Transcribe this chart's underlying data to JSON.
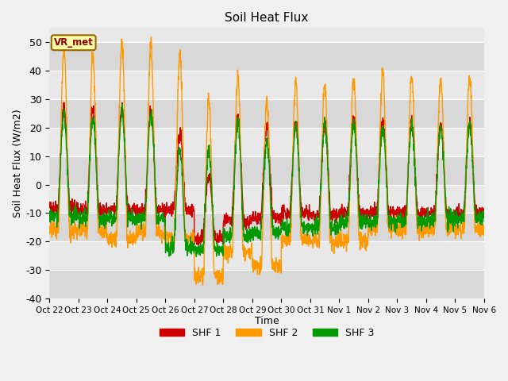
{
  "title": "Soil Heat Flux",
  "ylabel": "Soil Heat Flux (W/m2)",
  "xlabel": "Time",
  "annotation": "VR_met",
  "ylim": [
    -40,
    55
  ],
  "yticks": [
    -40,
    -30,
    -20,
    -10,
    0,
    10,
    20,
    30,
    40,
    50
  ],
  "legend_labels": [
    "SHF 1",
    "SHF 2",
    "SHF 3"
  ],
  "colors": [
    "#cc0000",
    "#ff9900",
    "#009900"
  ],
  "xtick_labels": [
    "Oct 22",
    "Oct 23",
    "Oct 24",
    "Oct 25",
    "Oct 26",
    "Oct 27",
    "Oct 28",
    "Oct 29",
    "Oct 30",
    "Oct 31",
    "Nov 1",
    "Nov 2",
    "Nov 3",
    "Nov 4",
    "Nov 5",
    "Nov 6"
  ],
  "bg_color": "#f0f0f0",
  "plot_bg_light": "#e8e8e8",
  "plot_bg_dark": "#d8d8d8",
  "grid_color": "#ffffff",
  "shf1_daily_peaks": [
    27,
    26,
    27,
    26,
    18,
    3,
    24,
    20,
    21,
    21,
    23,
    22,
    22,
    21,
    22
  ],
  "shf2_daily_peaks": [
    48,
    45,
    50,
    49,
    46,
    30,
    38,
    30,
    36,
    35,
    37,
    39,
    38,
    37,
    38
  ],
  "shf3_daily_peaks": [
    25,
    23,
    25,
    25,
    12,
    12,
    22,
    15,
    21,
    21,
    21,
    20,
    21,
    20,
    21
  ],
  "shf1_daily_mins": [
    -8,
    -9,
    -9,
    -9,
    -9,
    -19,
    -13,
    -12,
    -10,
    -11,
    -10,
    -10,
    -10,
    -10,
    -10
  ],
  "shf2_daily_mins": [
    -16,
    -16,
    -19,
    -17,
    -19,
    -32,
    -24,
    -29,
    -19,
    -20,
    -20,
    -15,
    -16,
    -15,
    -16
  ],
  "shf3_daily_mins": [
    -11,
    -12,
    -12,
    -12,
    -22,
    -23,
    -18,
    -17,
    -15,
    -15,
    -13,
    -13,
    -13,
    -12,
    -12
  ],
  "figsize": [
    6.4,
    4.8
  ],
  "dpi": 100
}
